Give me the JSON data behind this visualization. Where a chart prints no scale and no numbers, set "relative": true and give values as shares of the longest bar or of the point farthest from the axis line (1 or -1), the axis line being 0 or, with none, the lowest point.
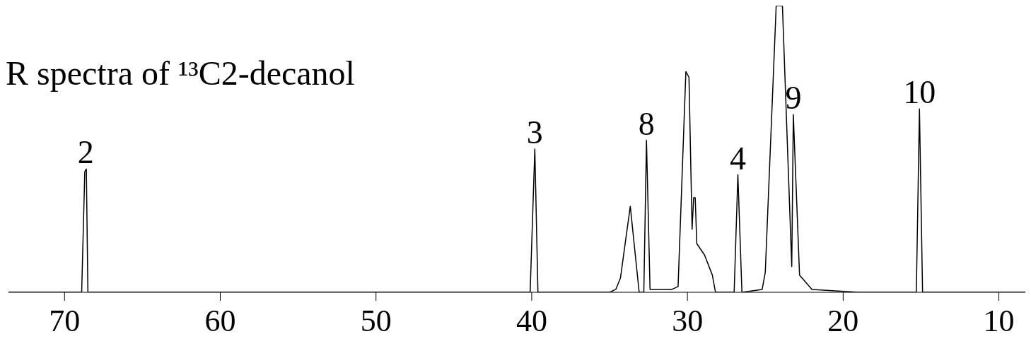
{
  "chart_data": {
    "type": "line",
    "title": "R spectra of ¹³C2-decanol",
    "relative": true,
    "xlim": [
      73.6,
      8.3
    ],
    "xticks": [
      70,
      60,
      50,
      40,
      30,
      20,
      10
    ],
    "x": [
      73.6,
      68.9,
      68.7,
      68.6,
      68.5,
      40.1,
      39.8,
      39.6,
      35.0,
      34.6,
      34.3,
      33.67,
      33.1,
      32.8,
      32.63,
      32.4,
      31.0,
      30.6,
      30.1,
      29.9,
      29.7,
      29.6,
      29.5,
      29.4,
      28.9,
      28.4,
      28.2,
      27.0,
      26.76,
      26.5,
      25.2,
      25.0,
      24.3,
      23.9,
      23.3,
      23.2,
      22.8,
      22.0,
      19.0,
      15.3,
      15.1,
      14.9,
      8.3
    ],
    "series": [
      {
        "color": "#000000",
        "values": [
          0,
          0,
          0.42,
          0.43,
          0,
          0,
          0.5,
          0,
          0,
          0.01,
          0.05,
          0.3,
          0,
          0,
          0.53,
          0.01,
          0.01,
          0.02,
          0.77,
          0.75,
          0.22,
          0.33,
          0.33,
          0.17,
          0.13,
          0.06,
          0,
          0,
          0.41,
          0,
          0.01,
          0.07,
          1,
          1,
          0.09,
          0.62,
          0.06,
          0.01,
          0,
          0,
          0.64,
          0,
          0
        ]
      }
    ],
    "annotations": [
      {
        "text": "2",
        "x": 68.64,
        "y": 0.43
      },
      {
        "text": "3",
        "x": 39.8,
        "y": 0.5
      },
      {
        "text": "8",
        "x": 32.63,
        "y": 0.53
      },
      {
        "text": "4",
        "x": 26.76,
        "y": 0.41
      },
      {
        "text": "9",
        "x": 23.2,
        "y": 0.62
      },
      {
        "text": "10",
        "x": 15.1,
        "y": 0.64
      }
    ],
    "marker": "none"
  }
}
